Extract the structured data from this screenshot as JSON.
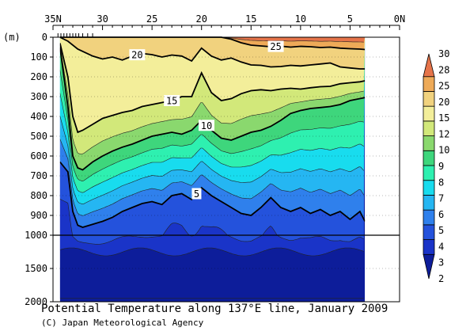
{
  "chart_data": {
    "type": "heatmap",
    "title": "Potential Temperature along 137°E line, January 2009",
    "credit": "(C) Japan Meteorological Agency",
    "ylabel": "(m)",
    "x_axis": {
      "ticks": [
        {
          "value": 35,
          "label": "35N"
        },
        {
          "value": 30,
          "label": "30"
        },
        {
          "value": 25,
          "label": "25"
        },
        {
          "value": 20,
          "label": "20"
        },
        {
          "value": 15,
          "label": "15"
        },
        {
          "value": 10,
          "label": "10"
        },
        {
          "value": 5,
          "label": "5"
        },
        {
          "value": 0,
          "label": "0N"
        }
      ],
      "range": [
        35,
        0
      ],
      "station_ticks": [
        34.5,
        34.2,
        33.9,
        33.6,
        33.3,
        33.0,
        32.7,
        32.4,
        32.0,
        31.5,
        31.0
      ]
    },
    "y_axis": {
      "ticks": [
        {
          "value": 0,
          "label": "0"
        },
        {
          "value": 100,
          "label": "100"
        },
        {
          "value": 200,
          "label": "200"
        },
        {
          "value": 300,
          "label": "300"
        },
        {
          "value": 400,
          "label": "400"
        },
        {
          "value": 500,
          "label": "500"
        },
        {
          "value": 600,
          "label": "600"
        },
        {
          "value": 700,
          "label": "700"
        },
        {
          "value": 800,
          "label": "800"
        },
        {
          "value": 900,
          "label": "900"
        },
        {
          "value": 1000,
          "label": "1000"
        },
        {
          "value": 1500,
          "label": "1500"
        },
        {
          "value": 2000,
          "label": "2000"
        }
      ],
      "range": [
        0,
        2000
      ],
      "scale_break": 1000
    },
    "data_extent": {
      "lat_north": 34.3,
      "lat_south": 3.5
    },
    "legend": {
      "placement": "right",
      "levels": [
        2,
        3,
        4,
        5,
        6,
        7,
        8,
        9,
        10,
        12,
        15,
        20,
        25,
        28,
        30
      ],
      "labels": [
        "30",
        "28",
        "25",
        "20",
        "15",
        "12",
        "10",
        "9",
        "8",
        "7",
        "6",
        "5",
        "4",
        "3",
        "2"
      ],
      "colors": [
        "#0d1d9a",
        "#1a34c8",
        "#2452dc",
        "#2f80ec",
        "#25b6f2",
        "#18dcee",
        "#2ef0b0",
        "#3ed67c",
        "#8ad86e",
        "#d2e87a",
        "#f3ee9a",
        "#f1d27e",
        "#eeaa58",
        "#e6744a"
      ]
    },
    "isotherms": [
      {
        "value": 25,
        "label": "25",
        "bold": true,
        "label_lat": 12.5,
        "depths": [
          [
            34.3,
            0
          ],
          [
            30,
            0
          ],
          [
            25,
            0
          ],
          [
            20,
            0
          ],
          [
            18,
            0
          ],
          [
            17,
            10
          ],
          [
            16,
            28
          ],
          [
            15,
            40
          ],
          [
            14,
            44
          ],
          [
            13,
            48
          ],
          [
            12,
            45
          ],
          [
            11,
            50
          ],
          [
            10,
            46
          ],
          [
            9,
            48
          ],
          [
            8,
            52
          ],
          [
            7,
            50
          ],
          [
            6,
            55
          ],
          [
            5,
            58
          ],
          [
            4,
            60
          ],
          [
            3.5,
            62
          ]
        ]
      },
      {
        "value": 20,
        "label": "20",
        "bold": true,
        "label_lat": 26.5,
        "depths": [
          [
            34.3,
            0
          ],
          [
            33.5,
            20
          ],
          [
            32.5,
            60
          ],
          [
            31,
            95
          ],
          [
            30,
            110
          ],
          [
            29,
            100
          ],
          [
            28,
            115
          ],
          [
            27,
            95
          ],
          [
            26,
            82
          ],
          [
            25,
            88
          ],
          [
            24,
            100
          ],
          [
            23,
            90
          ],
          [
            22,
            95
          ],
          [
            21,
            120
          ],
          [
            20,
            55
          ],
          [
            19,
            95
          ],
          [
            18,
            115
          ],
          [
            17,
            105
          ],
          [
            16,
            125
          ],
          [
            15,
            140
          ],
          [
            14,
            142
          ],
          [
            13,
            150
          ],
          [
            12,
            148
          ],
          [
            11,
            142
          ],
          [
            10,
            145
          ],
          [
            9,
            140
          ],
          [
            8,
            135
          ],
          [
            7,
            130
          ],
          [
            6,
            150
          ],
          [
            5,
            155
          ],
          [
            4,
            160
          ],
          [
            3.5,
            160
          ]
        ]
      },
      {
        "value": 15,
        "label": "15",
        "bold": true,
        "label_lat": 23,
        "depths": [
          [
            34.3,
            30
          ],
          [
            33.5,
            200
          ],
          [
            33,
            400
          ],
          [
            32.5,
            480
          ],
          [
            32,
            470
          ],
          [
            31,
            440
          ],
          [
            30,
            410
          ],
          [
            29,
            395
          ],
          [
            28,
            380
          ],
          [
            27,
            370
          ],
          [
            26,
            350
          ],
          [
            25,
            340
          ],
          [
            24,
            330
          ],
          [
            23,
            320
          ],
          [
            22,
            300
          ],
          [
            21,
            300
          ],
          [
            20,
            180
          ],
          [
            19,
            280
          ],
          [
            18,
            320
          ],
          [
            17,
            310
          ],
          [
            16,
            285
          ],
          [
            15,
            270
          ],
          [
            14,
            265
          ],
          [
            13,
            270
          ],
          [
            12,
            262
          ],
          [
            11,
            258
          ],
          [
            10,
            262
          ],
          [
            9,
            255
          ],
          [
            8,
            250
          ],
          [
            7,
            248
          ],
          [
            6,
            235
          ],
          [
            5,
            230
          ],
          [
            4,
            225
          ],
          [
            3.5,
            220
          ]
        ]
      },
      {
        "value": 10,
        "label": "10",
        "bold": true,
        "label_lat": 19.5,
        "depths": [
          [
            34.3,
            50
          ],
          [
            33.5,
            350
          ],
          [
            33,
            600
          ],
          [
            32.5,
            660
          ],
          [
            32,
            670
          ],
          [
            31,
            630
          ],
          [
            30,
            600
          ],
          [
            29,
            575
          ],
          [
            28,
            555
          ],
          [
            27,
            540
          ],
          [
            26,
            520
          ],
          [
            25,
            500
          ],
          [
            24,
            490
          ],
          [
            23,
            480
          ],
          [
            22,
            490
          ],
          [
            21,
            470
          ],
          [
            20,
            420
          ],
          [
            19,
            470
          ],
          [
            18,
            510
          ],
          [
            17,
            520
          ],
          [
            16,
            500
          ],
          [
            15,
            480
          ],
          [
            14,
            470
          ],
          [
            13,
            450
          ],
          [
            12,
            420
          ],
          [
            11,
            385
          ],
          [
            10,
            370
          ],
          [
            9,
            360
          ],
          [
            8,
            355
          ],
          [
            7,
            350
          ],
          [
            6,
            340
          ],
          [
            5,
            320
          ],
          [
            4,
            310
          ],
          [
            3.5,
            305
          ]
        ]
      },
      {
        "value": 5,
        "label": "5",
        "bold": true,
        "label_lat": 20.5,
        "depths": [
          [
            34.3,
            630
          ],
          [
            33.5,
            680
          ],
          [
            33,
            880
          ],
          [
            32.5,
            950
          ],
          [
            32,
            960
          ],
          [
            31,
            945
          ],
          [
            30,
            930
          ],
          [
            29,
            910
          ],
          [
            28,
            880
          ],
          [
            27,
            860
          ],
          [
            26,
            840
          ],
          [
            25,
            830
          ],
          [
            24,
            845
          ],
          [
            23,
            800
          ],
          [
            22,
            790
          ],
          [
            21,
            820
          ],
          [
            20,
            760
          ],
          [
            19,
            800
          ],
          [
            18,
            830
          ],
          [
            17,
            860
          ],
          [
            16,
            890
          ],
          [
            15,
            900
          ],
          [
            14,
            860
          ],
          [
            13,
            810
          ],
          [
            12,
            860
          ],
          [
            11,
            880
          ],
          [
            10,
            860
          ],
          [
            9,
            890
          ],
          [
            8,
            870
          ],
          [
            7,
            900
          ],
          [
            6,
            880
          ],
          [
            5,
            920
          ],
          [
            4,
            880
          ],
          [
            3.5,
            930
          ]
        ]
      }
    ]
  }
}
